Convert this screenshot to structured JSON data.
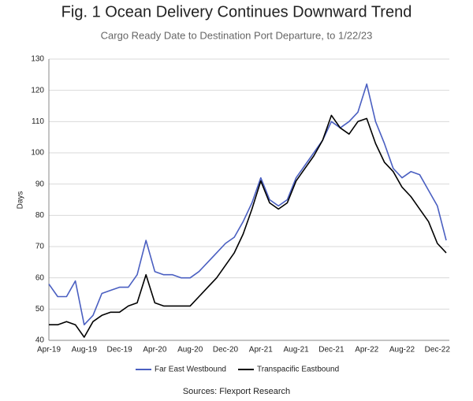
{
  "chart_data": {
    "type": "line",
    "title": "Fig. 1 Ocean Delivery Continues Downward Trend",
    "subtitle": "Cargo Ready Date to Destination Port Departure, to 1/22/23",
    "y_label": "Days",
    "source": "Sources: Flexport Research",
    "categories": [
      "Apr-19",
      null,
      null,
      null,
      "Aug-19",
      null,
      null,
      null,
      "Dec-19",
      null,
      null,
      null,
      "Apr-20",
      null,
      null,
      null,
      "Aug-20",
      null,
      null,
      null,
      "Dec-20",
      null,
      null,
      null,
      "Apr-21",
      null,
      null,
      null,
      "Aug-21",
      null,
      null,
      null,
      "Dec-21",
      null,
      null,
      null,
      "Apr-22",
      null,
      null,
      null,
      "Aug-22",
      null,
      null,
      null,
      "Dec-22",
      null
    ],
    "series": [
      {
        "name": "Far East Westbound",
        "color": "#4a5fc1",
        "values": [
          58,
          54,
          54,
          59,
          45,
          48,
          55,
          56,
          57,
          57,
          61,
          72,
          62,
          61,
          61,
          60,
          60,
          62,
          65,
          68,
          71,
          73,
          78,
          84,
          92,
          85,
          83,
          85,
          92,
          96,
          100,
          104,
          110,
          108,
          110,
          113,
          122,
          110,
          103,
          95,
          92,
          94,
          93,
          88,
          83,
          72
        ]
      },
      {
        "name": "Transpacific Eastbound",
        "color": "#000000",
        "values": [
          45,
          45,
          46,
          45,
          41,
          46,
          48,
          49,
          49,
          51,
          52,
          61,
          52,
          51,
          51,
          51,
          51,
          54,
          57,
          60,
          64,
          68,
          74,
          82,
          91,
          84,
          82,
          84,
          91,
          95,
          99,
          104,
          112,
          108,
          106,
          110,
          111,
          103,
          97,
          94,
          89,
          86,
          82,
          78,
          71,
          68
        ]
      }
    ],
    "ylim": [
      40,
      130
    ],
    "yticks": [
      40,
      50,
      60,
      70,
      80,
      90,
      100,
      110,
      120,
      130
    ],
    "grid": true,
    "legend": "bottom"
  }
}
